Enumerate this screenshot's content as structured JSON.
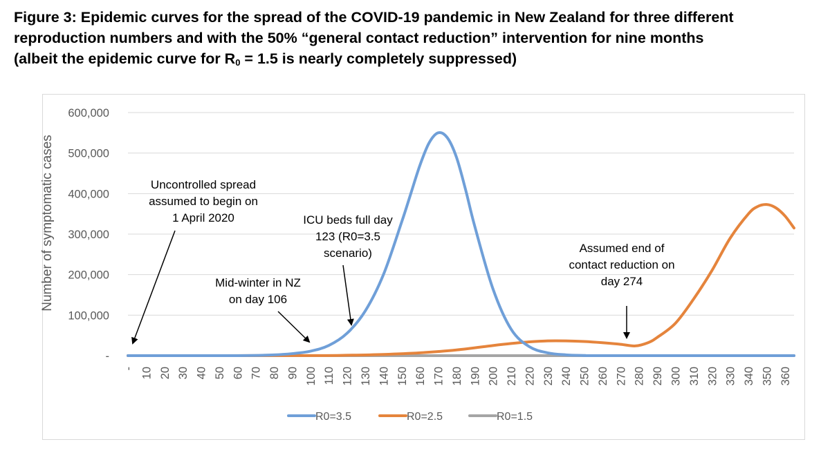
{
  "caption": {
    "line1": "Figure 3: Epidemic curves for the spread of the COVID-19 pandemic in New Zealand for three different",
    "line2": "reproduction numbers and with the 50% “general contact reduction” intervention for nine months",
    "line3_pre": "(albeit the epidemic curve for R",
    "line3_sub": "0",
    "line3_post": " = 1.5 is nearly completely suppressed)"
  },
  "chart_data": {
    "type": "line",
    "title": "",
    "ylabel": "Number of symptomatic cases",
    "xlabel": "",
    "ylim": [
      0,
      600000
    ],
    "xlim": [
      0,
      365
    ],
    "y_ticks": [
      0,
      100000,
      200000,
      300000,
      400000,
      500000,
      600000
    ],
    "y_tick_labels": [
      "-",
      "100,000",
      "200,000",
      "300,000",
      "400,000",
      "500,000",
      "600,000"
    ],
    "x_ticks": [
      0,
      10,
      20,
      30,
      40,
      50,
      60,
      70,
      80,
      90,
      100,
      110,
      120,
      130,
      140,
      150,
      160,
      170,
      180,
      190,
      200,
      210,
      220,
      230,
      240,
      250,
      260,
      270,
      280,
      290,
      300,
      310,
      320,
      330,
      340,
      350,
      360
    ],
    "x_tick_labels": [
      "-",
      "10",
      "20",
      "30",
      "40",
      "50",
      "60",
      "70",
      "80",
      "90",
      "100",
      "110",
      "120",
      "130",
      "140",
      "150",
      "160",
      "170",
      "180",
      "190",
      "200",
      "210",
      "220",
      "230",
      "240",
      "250",
      "260",
      "270",
      "280",
      "290",
      "300",
      "310",
      "320",
      "330",
      "340",
      "350",
      "360"
    ],
    "grid": true,
    "legend_position": "bottom",
    "series": [
      {
        "name": "R0=3.5",
        "color": "#6f9fd8",
        "x": [
          0,
          60,
          80,
          90,
          100,
          110,
          120,
          130,
          140,
          150,
          155,
          160,
          165,
          170,
          175,
          180,
          185,
          190,
          200,
          210,
          220,
          230,
          240,
          250,
          260,
          365
        ],
        "y": [
          0,
          0,
          2000,
          5000,
          11000,
          25000,
          55000,
          110000,
          200000,
          330000,
          400000,
          470000,
          525000,
          550000,
          538000,
          490000,
          410000,
          320000,
          165000,
          65000,
          22000,
          7000,
          2000,
          500,
          0,
          0
        ]
      },
      {
        "name": "R0=2.5",
        "color": "#e5843c",
        "x": [
          0,
          100,
          120,
          140,
          160,
          180,
          200,
          210,
          220,
          230,
          240,
          250,
          260,
          270,
          278,
          285,
          290,
          300,
          310,
          320,
          330,
          340,
          345,
          350,
          355,
          360,
          365
        ],
        "y": [
          0,
          200,
          1000,
          3000,
          7000,
          14000,
          25000,
          30000,
          34000,
          36500,
          36500,
          35000,
          32000,
          28000,
          24000,
          32000,
          45000,
          80000,
          140000,
          210000,
          290000,
          350000,
          368000,
          373000,
          365000,
          345000,
          315000
        ]
      },
      {
        "name": "R0=1.5",
        "color": "#a5a5a5",
        "x": [
          0,
          365
        ],
        "y": [
          0,
          0
        ]
      }
    ],
    "annotations": [
      {
        "lines": [
          "Uncontrolled spread",
          "assumed to begin on",
          "1 April 2020"
        ]
      },
      {
        "lines": [
          "ICU beds full day",
          "123 (R0=3.5",
          "scenario)"
        ]
      },
      {
        "lines": [
          "Mid-winter in NZ",
          "on day 106"
        ]
      },
      {
        "lines": [
          "Assumed end of",
          "contact reduction on",
          "day 274"
        ]
      }
    ]
  }
}
